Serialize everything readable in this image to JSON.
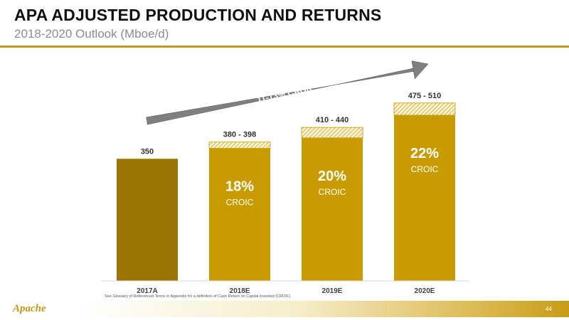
{
  "header": {
    "title": "APA ADJUSTED PRODUCTION AND RETURNS",
    "subtitle": "2018-2020 Outlook (Mboe/d)"
  },
  "chart_data": {
    "type": "bar",
    "title": "APA ADJUSTED PRODUCTION AND RETURNS",
    "subtitle": "2018-2020 Outlook (Mboe/d)",
    "categories": [
      "2017A",
      "2018E",
      "2019E",
      "2020E"
    ],
    "series": [
      {
        "values": [
          350,
          380,
          410,
          475
        ]
      },
      {
        "values": [
          0,
          18,
          30,
          35
        ]
      }
    ],
    "value_labels": [
      "350",
      "380 - 398",
      "410 - 440",
      "475 - 510"
    ],
    "bar_annotations": [
      null,
      {
        "value": "18%",
        "label": "CROIC"
      },
      {
        "value": "20%",
        "label": "CROIC"
      },
      {
        "value": "22%",
        "label": "CROIC"
      }
    ],
    "arrow_label": "11-13% CAGR",
    "ylim": [
      0,
      510
    ],
    "colors": {
      "actual": "#9a7400",
      "estimate": "#c89b00",
      "range_hatch": "#c89b00",
      "arrow": "#7f7f7f"
    },
    "grid": false,
    "legend": "none"
  },
  "footer": {
    "footnote": "See Glossary of Referenced Terms in Appendix for a definition of Cash Return on Capital Invested (CROIC)",
    "logo": "Apache",
    "page_number": "44"
  }
}
